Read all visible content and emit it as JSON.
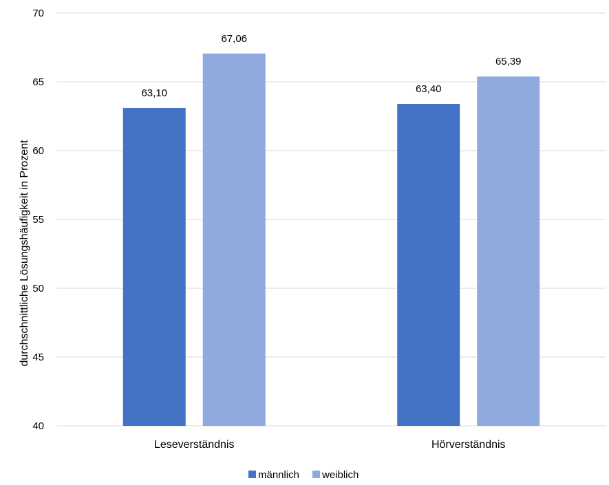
{
  "chart_data": {
    "type": "bar",
    "title": "",
    "xlabel": "",
    "ylabel": "durchschnittliche Lösungshäufigkeit in Prozent",
    "ylim": [
      40,
      70
    ],
    "yticks": [
      40,
      45,
      50,
      55,
      60,
      65,
      70
    ],
    "grid": true,
    "legend_position": "bottom",
    "categories": [
      "Leseverständnis",
      "Hörverständnis"
    ],
    "series": [
      {
        "name": "männlich",
        "color": "#4472c4",
        "values": [
          63.1,
          63.4
        ],
        "labels": [
          "63,10",
          "63,40"
        ]
      },
      {
        "name": "weiblich",
        "color": "#8faadc",
        "values": [
          67.06,
          65.39
        ],
        "labels": [
          "67,06",
          "65,39"
        ]
      }
    ]
  }
}
